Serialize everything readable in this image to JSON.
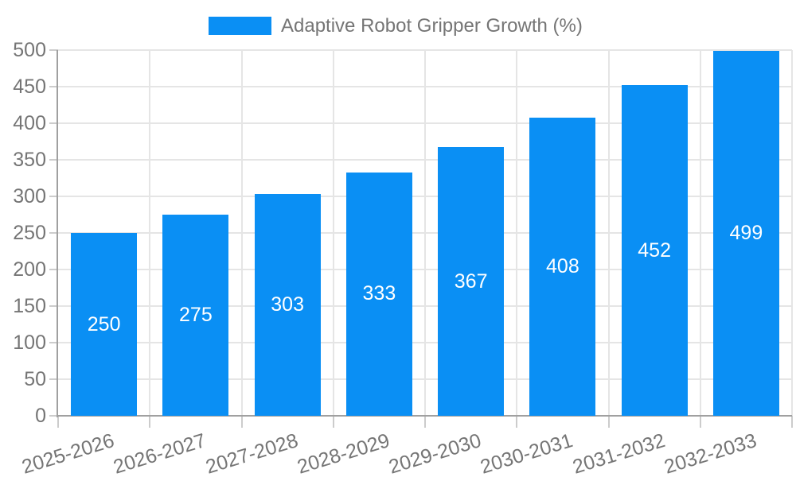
{
  "chart_data": {
    "type": "bar",
    "legend": "Adaptive Robot Gripper Growth (%)",
    "categories": [
      "2025-2026",
      "2026-2027",
      "2027-2028",
      "2028-2029",
      "2029-2030",
      "2030-2031",
      "2031-2032",
      "2032-2033"
    ],
    "values": [
      250,
      275,
      303,
      333,
      367,
      408,
      452,
      499
    ],
    "yticks": [
      0,
      50,
      100,
      150,
      200,
      250,
      300,
      350,
      400,
      450,
      500
    ],
    "ylim": [
      0,
      500
    ],
    "grid": true,
    "legend_position": "top-center",
    "bar_label_position": "inside-center",
    "colors": {
      "bar": "#0a8ff4",
      "bar_label": "#ffffff",
      "axis_text": "#757575",
      "axis_line": "#a0a0a0",
      "gridline": "#e5e5e5",
      "tick": "#cccccc",
      "background": "#ffffff"
    }
  }
}
